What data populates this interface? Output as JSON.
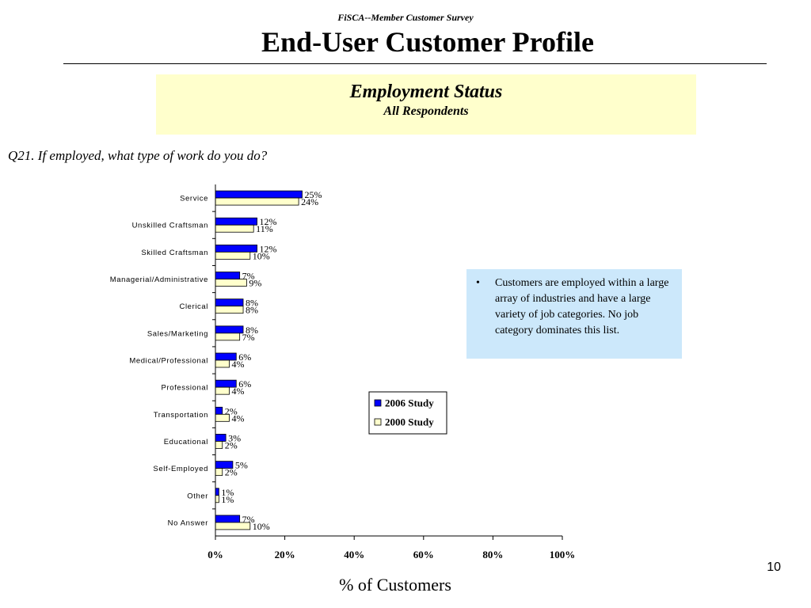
{
  "header": {
    "supertitle": "FiSCA--Member Customer Survey",
    "title": "End-User Customer Profile"
  },
  "banner": {
    "title": "Employment Status",
    "subtitle": "All Respondents"
  },
  "question": "Q21. If employed, what type of work do you do?",
  "note": {
    "text": "Customers are employed within a large array of industries and have a large variety of job categories.  No job category dominates this list."
  },
  "page_number": "10",
  "chart_data": {
    "type": "bar",
    "orientation": "horizontal",
    "categories": [
      "Service",
      "Unskilled Craftsman",
      "Skilled Craftsman",
      "Managerial/Administrative",
      "Clerical",
      "Sales/Marketing",
      "Medical/Professional",
      "Professional",
      "Transportation",
      "Educational",
      "Self-Employed",
      "Other",
      "No Answer"
    ],
    "series": [
      {
        "name": "2006 Study",
        "color": "#0000ff",
        "values": [
          25,
          12,
          12,
          7,
          8,
          8,
          6,
          6,
          2,
          3,
          5,
          1,
          7
        ]
      },
      {
        "name": "2000 Study",
        "color": "#ffffcc",
        "values": [
          24,
          11,
          10,
          9,
          8,
          7,
          4,
          4,
          4,
          2,
          2,
          1,
          10
        ]
      }
    ],
    "xlabel": "% of Customers",
    "xlim": [
      0,
      100
    ],
    "xticks": [
      "0%",
      "20%",
      "40%",
      "60%",
      "80%",
      "100%"
    ],
    "value_suffix": "%",
    "legend_position": "center-right",
    "grid": false
  }
}
